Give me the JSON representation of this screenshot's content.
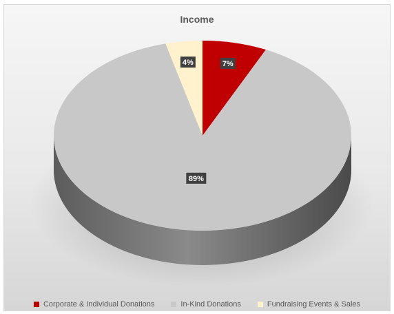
{
  "chart_data": {
    "type": "pie",
    "title": "Income",
    "categories": [
      "Corporate & Individual Donations",
      "In-Kind Donations",
      "Fundraising Events & Sales"
    ],
    "values": [
      7,
      89,
      4
    ],
    "data_labels": [
      "7%",
      "89%",
      "4%"
    ],
    "colors": [
      "#c00000",
      "#c8c8c8",
      "#fff2cc"
    ],
    "legend_position": "bottom",
    "style": "3D pie"
  }
}
